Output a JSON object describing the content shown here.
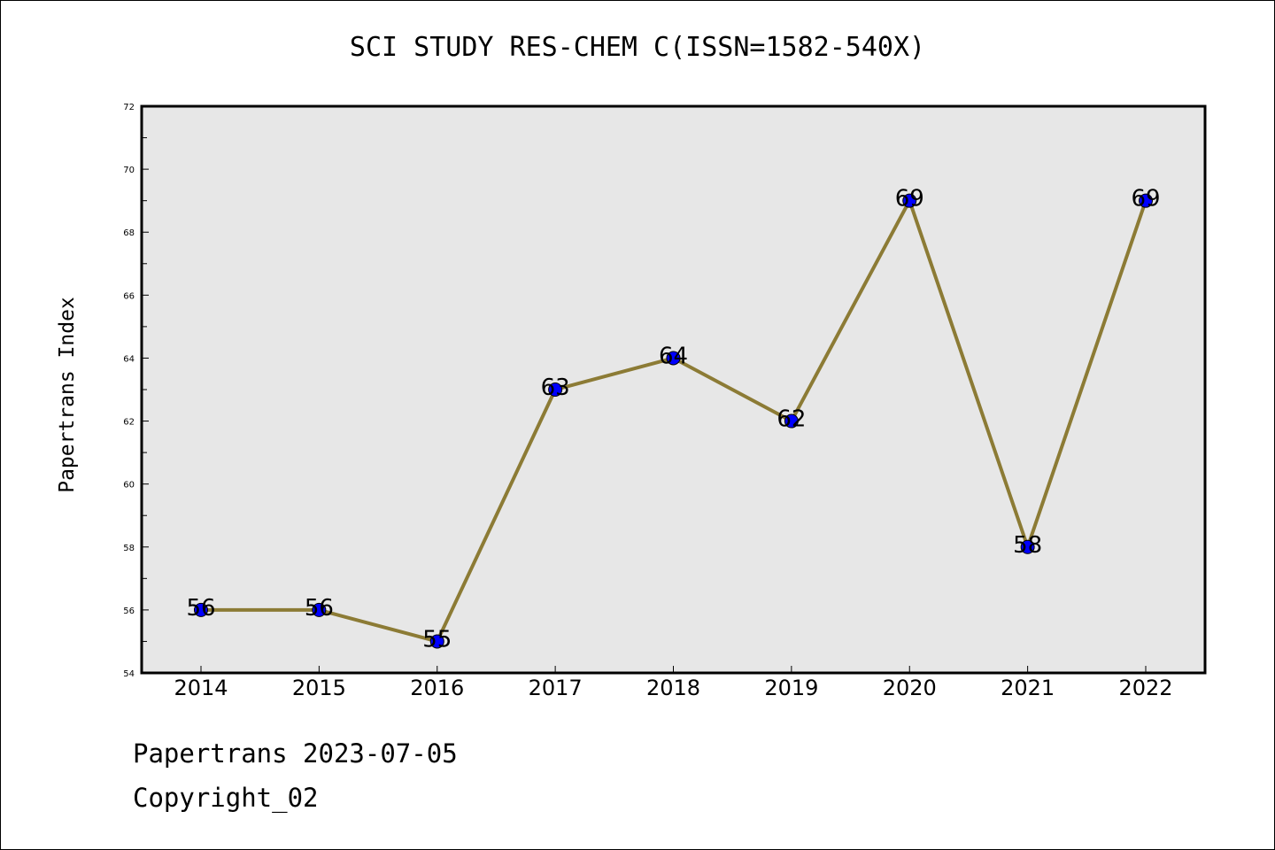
{
  "chart_data": {
    "type": "line",
    "title": "SCI STUDY RES-CHEM C(ISSN=1582-540X)",
    "xlabel": "",
    "ylabel": "Papertrans Index",
    "categories": [
      "2014",
      "2015",
      "2016",
      "2017",
      "2018",
      "2019",
      "2020",
      "2021",
      "2022"
    ],
    "series": [
      {
        "values": [
          56,
          56,
          55,
          63,
          64,
          62,
          69,
          58,
          69
        ],
        "line_color": "#8c7b35",
        "marker_color": "#0000ff"
      }
    ],
    "data_labels": [
      "56",
      "56",
      "55",
      "63",
      "64",
      "62",
      "69",
      "58",
      "69"
    ],
    "ylim": [
      54,
      72
    ],
    "yticks": [
      "54",
      "56",
      "58",
      "60",
      "62",
      "64",
      "66",
      "68",
      "70",
      "72"
    ],
    "grid": false,
    "legend": "none",
    "plot_background": "#e7e7e7"
  },
  "footer": {
    "line1": "Papertrans 2023-07-05",
    "line2": "Copyright_02"
  }
}
